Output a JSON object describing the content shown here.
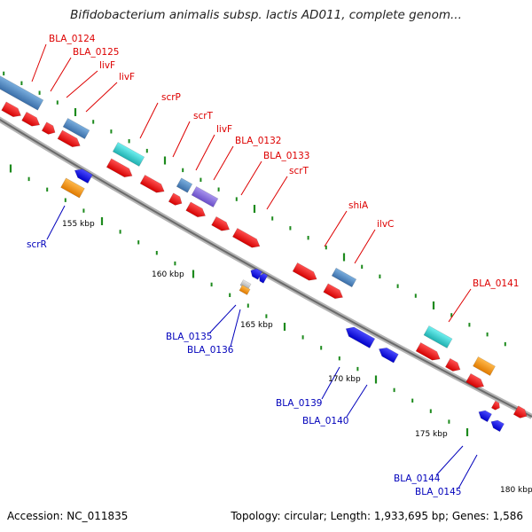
{
  "title": "Bifidobacterium animalis subsp. lactis AD011, complete genom...",
  "footer": {
    "accession": "Accession: NC_011835",
    "summary": "Topology: circular; Length: 1,933,695 bp; Genes: 1,586"
  },
  "colors": {
    "backbone": "#8a8a8a",
    "forward_gene": "#ff1a1a",
    "reverse_gene": "#1a1aff",
    "steelblue_feature": "#4f86c0",
    "cyan_feature": "#3ad3d3",
    "purple_feature": "#8a6fd8",
    "orange_feature": "#ff9a1a",
    "gray_feature": "#c8c8c8",
    "tick": "#1d8a1d",
    "label_forward": "#dd0000",
    "label_reverse": "#0000bb",
    "scale_label": "#000000"
  },
  "scale_labels": [
    "155 kbp",
    "160 kbp",
    "165 kbp",
    "170 kbp",
    "175 kbp",
    "180 kbp"
  ],
  "forward_labels": [
    "BLA_0124",
    "BLA_0125",
    "livF",
    "livF",
    "scrP",
    "scrT",
    "livF",
    "BLA_0132",
    "BLA_0133",
    "scrT",
    "shiA",
    "ilvC",
    "BLA_0141"
  ],
  "reverse_labels": [
    "scrR",
    "BLA_0135",
    "BLA_0136",
    "BLA_0139",
    "BLA_0140",
    "BLA_0144",
    "BLA_0145"
  ]
}
